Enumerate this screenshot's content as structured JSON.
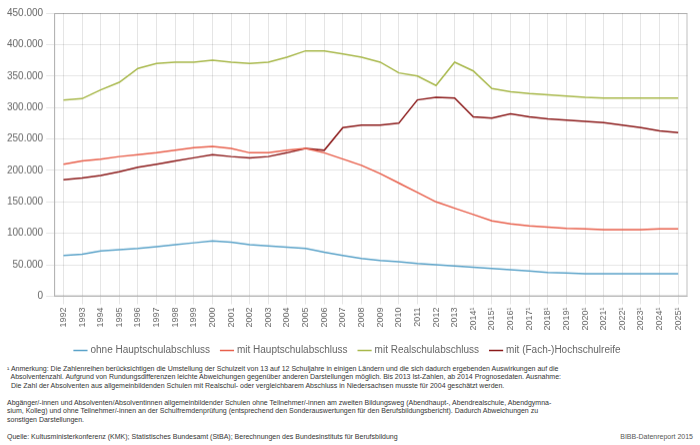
{
  "chart_data": {
    "type": "line",
    "x": [
      1992,
      1993,
      1994,
      1995,
      1996,
      1997,
      1998,
      1999,
      2000,
      2001,
      2002,
      2003,
      2004,
      2005,
      2006,
      2007,
      2008,
      2009,
      2010,
      2011,
      2012,
      2013,
      2014,
      2015,
      2016,
      2017,
      2018,
      2019,
      2020,
      2021,
      2022,
      2023,
      2024,
      2025
    ],
    "series": [
      {
        "name": "ohne Hauptschulabschluss",
        "color": "#5ba3c9",
        "values": [
          65000,
          67000,
          72000,
          74000,
          76000,
          79000,
          82000,
          85000,
          88000,
          86000,
          82000,
          80000,
          78000,
          76000,
          70000,
          65000,
          60000,
          57000,
          55000,
          52000,
          50000,
          48000,
          46000,
          44000,
          42000,
          40000,
          38000,
          37000,
          36000,
          36000,
          36000,
          36000,
          36000,
          36000
        ]
      },
      {
        "name": "mit Hauptschulabschluss",
        "color": "#e8604c",
        "values": [
          210000,
          215000,
          218000,
          222000,
          225000,
          228000,
          232000,
          236000,
          238000,
          235000,
          228000,
          228000,
          232000,
          235000,
          228000,
          218000,
          208000,
          195000,
          180000,
          165000,
          150000,
          140000,
          130000,
          120000,
          115000,
          112000,
          110000,
          108000,
          107000,
          106000,
          106000,
          106000,
          107000,
          107000
        ]
      },
      {
        "name": "mit Realschulabschluss",
        "color": "#a8b84b",
        "values": [
          312000,
          314000,
          328000,
          340000,
          362000,
          370000,
          372000,
          372000,
          375000,
          372000,
          370000,
          372000,
          380000,
          390000,
          390000,
          385000,
          380000,
          372000,
          355000,
          350000,
          335000,
          372000,
          358000,
          330000,
          325000,
          322000,
          320000,
          318000,
          316000,
          315000,
          315000,
          315000,
          315000,
          315000
        ]
      },
      {
        "name": "mit (Fach‑)Hochschulreife",
        "color": "#8b1a1a",
        "values": [
          185000,
          188000,
          192000,
          198000,
          205000,
          210000,
          215000,
          220000,
          225000,
          222000,
          220000,
          222000,
          228000,
          235000,
          232000,
          268000,
          272000,
          272000,
          275000,
          312000,
          316000,
          315000,
          285000,
          283000,
          290000,
          285000,
          282000,
          280000,
          278000,
          276000,
          272000,
          268000,
          263000,
          260000
        ]
      }
    ],
    "xlim": [
      1991.5,
      2025.5
    ],
    "xticks": [
      1992,
      1993,
      1994,
      1995,
      1996,
      1997,
      1998,
      1999,
      2000,
      2001,
      2002,
      2003,
      2004,
      2005,
      2006,
      2007,
      2008,
      2009,
      2010,
      2011,
      2012,
      2013,
      {
        "value": 2014,
        "label": "2014¹"
      },
      {
        "value": 2015,
        "label": "2015¹"
      },
      {
        "value": 2016,
        "label": "2016¹"
      },
      {
        "value": 2017,
        "label": "2017¹"
      },
      {
        "value": 2018,
        "label": "2018¹"
      },
      {
        "value": 2019,
        "label": "2019¹"
      },
      {
        "value": 2020,
        "label": "2020¹"
      },
      {
        "value": 2021,
        "label": "2021¹"
      },
      {
        "value": 2022,
        "label": "2022¹"
      },
      {
        "value": 2023,
        "label": "2023¹"
      },
      {
        "value": 2024,
        "label": "2024¹"
      },
      {
        "value": 2025,
        "label": "2025¹"
      }
    ],
    "ylim": [
      0,
      450000
    ],
    "yticks": [
      0,
      {
        "value": 50000,
        "label": "50.000"
      },
      {
        "value": 100000,
        "label": "100.000"
      },
      {
        "value": 150000,
        "label": "150.000"
      },
      {
        "value": 200000,
        "label": "200.000"
      },
      {
        "value": 250000,
        "label": "250.000"
      },
      {
        "value": 300000,
        "label": "300.000"
      },
      {
        "value": 350000,
        "label": "350.000"
      },
      {
        "value": 400000,
        "label": "400.000"
      },
      {
        "value": 450000,
        "label": "450.000"
      }
    ],
    "grid": true,
    "legend": "bottom",
    "annotations": [
      [
        "¹ Anmerkung: Die Zahlenreihen berücksichtigen die Umstellung der Schulzeit von 13 auf 12 Schuljahre in einigen Ländern und die sich dadurch ergebenden Auswirkungen auf die",
        "  Absolventenzahl. Aufgrund von Rundungsdifferenzen leichte Abweichungen gegenüber anderen Darstellungen möglich. Bis 2013 Ist-Zahlen, ab 2014 Prognosedaten. Ausnahme:",
        "  Die Zahl der Absolventen aus allgemeinbildenden Schulen mit Realschul- oder vergleichbarem Abschluss in Niedersachsen musste für 2004 geschätzt werden."
      ],
      [
        "Abgänger/-innen und Absolventen/Absolventinnen allgemeinbildender Schulen ohne Teilnehmer/-innen am zweiten Bildungsweg (Abendhaupt-, Abendrealschule, Abendgymna-",
        "sium, Kolleg) und ohne Teilnehmer/-innen an der Schulfremdenprüfung (entsprechend den Sonderauswertungen für den Berufsbildungsbericht). Dadurch Abweichungen zu",
        "sonstigen Darstellungen."
      ],
      [
        "Quelle: Kultusministerkonferenz (KMK); Statistisches Bundesamt (StBA); Berechnungen des Bundesinstituts für Berufsbildung",
        "BIBB-Datenreport 2015"
      ]
    ]
  }
}
